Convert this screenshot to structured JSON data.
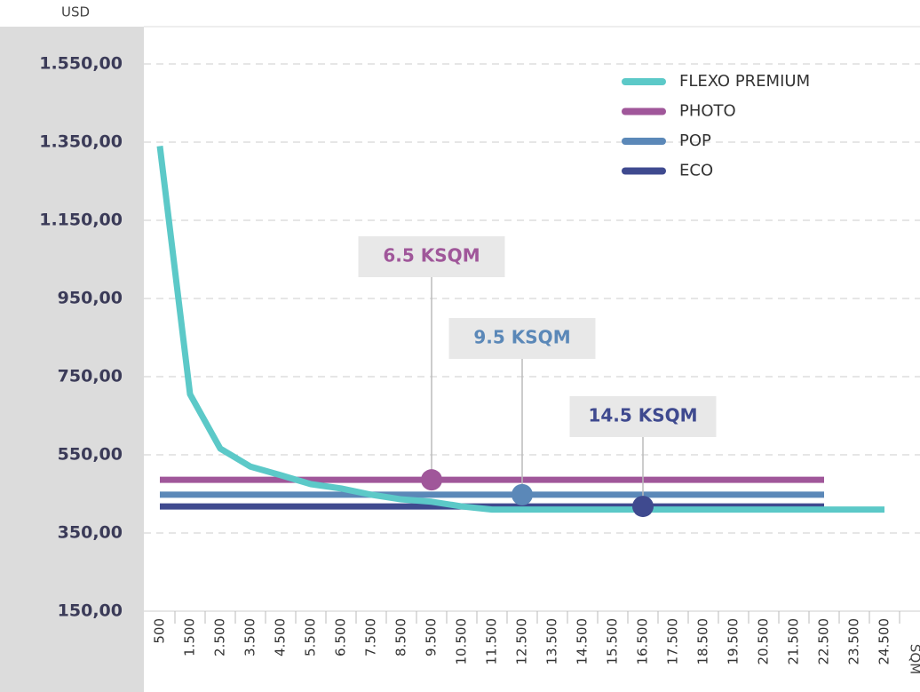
{
  "chart_data": {
    "type": "line",
    "y_label": "USD",
    "x_label": "SQM",
    "categories": [
      "500",
      "1.500",
      "2.500",
      "3.500",
      "4.500",
      "5.500",
      "6.500",
      "7.500",
      "8.500",
      "9.500",
      "10.500",
      "11.500",
      "12.500",
      "13.500",
      "14.500",
      "15.500",
      "16.500",
      "17.500",
      "18.500",
      "19.500",
      "20.500",
      "21.500",
      "22.500",
      "23.500",
      "24.500"
    ],
    "series": [
      {
        "name": "FLEXO PREMIUM",
        "color": "#5cc9c8",
        "values": [
          1340,
          705,
          566,
          520,
          498,
          475,
          464,
          448,
          436,
          430,
          418,
          410,
          410,
          410,
          410,
          410,
          410,
          410,
          410,
          410,
          410,
          410,
          410,
          410,
          410
        ]
      },
      {
        "name": "PHOTO",
        "color": "#a0579a",
        "values": [
          486,
          486,
          486,
          486,
          486,
          486,
          486,
          486,
          486,
          486,
          486,
          486,
          486,
          486,
          486,
          486,
          486,
          486,
          486,
          486,
          486,
          486,
          486,
          null,
          null
        ]
      },
      {
        "name": "POP",
        "color": "#5b88b8",
        "values": [
          448,
          448,
          448,
          448,
          448,
          448,
          448,
          448,
          448,
          448,
          448,
          448,
          448,
          448,
          448,
          448,
          448,
          448,
          448,
          448,
          448,
          448,
          448,
          null,
          null
        ]
      },
      {
        "name": "ECO",
        "color": "#3f4a8f",
        "values": [
          418,
          418,
          418,
          418,
          418,
          418,
          418,
          418,
          418,
          418,
          418,
          418,
          418,
          418,
          418,
          418,
          418,
          418,
          418,
          418,
          418,
          418,
          418,
          null,
          null
        ]
      }
    ],
    "annotations": [
      {
        "text": "6.5 KSQM",
        "series": 1,
        "category": "9.500"
      },
      {
        "text": "9.5 KSQM",
        "series": 2,
        "category": "12.500"
      },
      {
        "text": "14.5 KSQM",
        "series": 3,
        "category": "16.500"
      }
    ],
    "ylim": [
      150,
      1550
    ],
    "yticks": [
      {
        "value": 150,
        "label": "150,00"
      },
      {
        "value": 350,
        "label": "350,00"
      },
      {
        "value": 550,
        "label": "550,00"
      },
      {
        "value": 750,
        "label": "750,00"
      },
      {
        "value": 950,
        "label": "950,00"
      },
      {
        "value": 1150,
        "label": "1.150,00"
      },
      {
        "value": 1350,
        "label": "1.350,00"
      },
      {
        "value": 1550,
        "label": "1.550,00"
      }
    ],
    "grid": true,
    "legend": "top-right"
  }
}
